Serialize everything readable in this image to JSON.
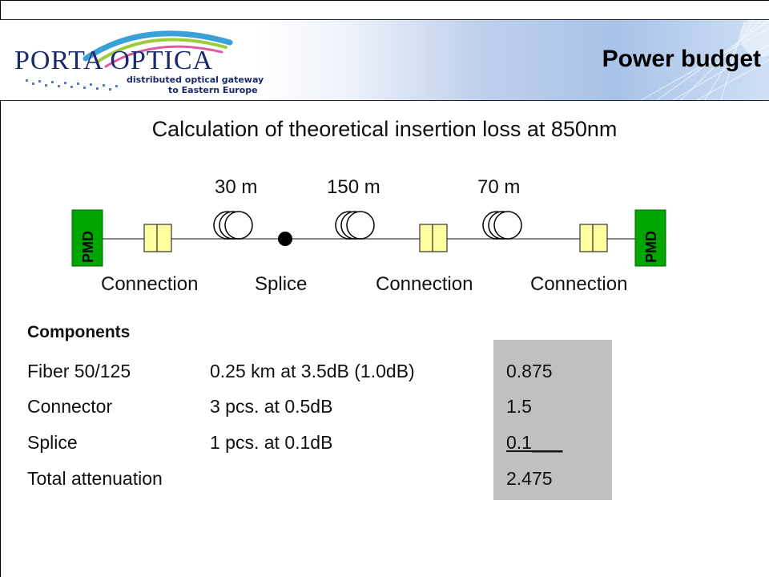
{
  "header": {
    "logo": {
      "name": "PORTA OPTICA",
      "tagline_line1": "distributed optical gateway",
      "tagline_line2": "to Eastern Europe"
    },
    "title": "Power budget"
  },
  "subtitle": "Calculation of theoretical insertion loss at 850nm",
  "diagram": {
    "pmd_left": "PMD",
    "pmd_right": "PMD",
    "lengths": [
      "30 m",
      "150 m",
      "70 m"
    ],
    "labels": [
      "Connection",
      "Splice",
      "Connection",
      "Connection"
    ]
  },
  "components": {
    "heading": "Components",
    "rows": [
      {
        "name": "Fiber 50/125",
        "detail": "0.25 km at 3.5dB (1.0dB)",
        "value": "0.875"
      },
      {
        "name": "Connector",
        "detail": "3 pcs. at 0.5dB",
        "value": "1.5"
      },
      {
        "name": "Splice",
        "detail": "1 pcs. at 0.1dB",
        "value": "0.1___"
      },
      {
        "name": "Total attenuation",
        "detail": "",
        "value": "2.475"
      }
    ]
  },
  "colors": {
    "pmd_green": "#00a600",
    "connector_yellow": "#ffffa0",
    "logo_blue": "#1a2a6c",
    "value_column_gray": "#c0c0c0"
  }
}
